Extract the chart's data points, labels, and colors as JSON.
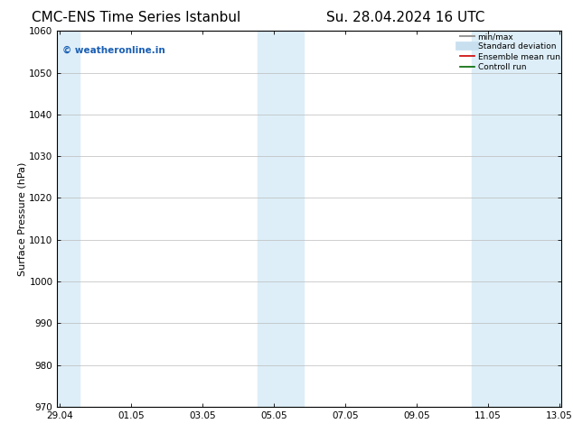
{
  "title": "CMC-ENS Time Series Istanbul",
  "title2": "Su. 28.04.2024 16 UTC",
  "ylabel": "Surface Pressure (hPa)",
  "ylim": [
    970,
    1060
  ],
  "yticks": [
    970,
    980,
    990,
    1000,
    1010,
    1020,
    1030,
    1040,
    1050,
    1060
  ],
  "xtick_labels": [
    "29.04",
    "01.05",
    "03.05",
    "05.05",
    "07.05",
    "09.05",
    "11.05",
    "13.05"
  ],
  "xtick_positions": [
    0,
    2,
    4,
    6,
    8,
    10,
    12,
    14
  ],
  "shaded_regions": [
    {
      "x_start": -0.07,
      "x_end": 0.55,
      "color": "#ddeef8"
    },
    {
      "x_start": 5.55,
      "x_end": 6.85,
      "color": "#ddeef8"
    },
    {
      "x_start": 11.55,
      "x_end": 14.07,
      "color": "#ddeef8"
    }
  ],
  "background_color": "#ffffff",
  "grid_color": "#bbbbbb",
  "watermark_text": "© weatheronline.in",
  "watermark_color": "#1a5fb4",
  "legend_items": [
    {
      "label": "min/max",
      "color": "#999999",
      "lw": 1.5,
      "style": "solid"
    },
    {
      "label": "Standard deviation",
      "color": "#c8dff0",
      "lw": 7,
      "style": "solid"
    },
    {
      "label": "Ensemble mean run",
      "color": "#cc0000",
      "lw": 1.2,
      "style": "solid"
    },
    {
      "label": "Controll run",
      "color": "#006600",
      "lw": 1.2,
      "style": "solid"
    }
  ],
  "title_fontsize": 11,
  "axis_fontsize": 8,
  "tick_fontsize": 7.5,
  "watermark_fontsize": 7.5
}
